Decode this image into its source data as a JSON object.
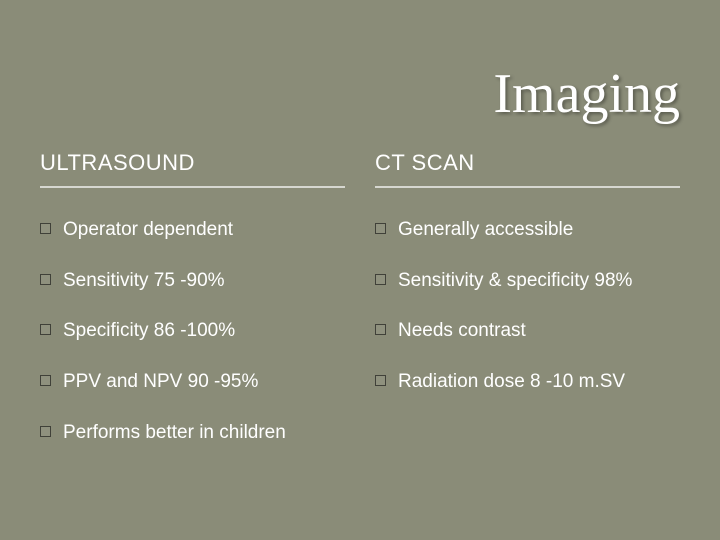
{
  "title": "Imaging",
  "title_fontsize": 56,
  "title_font_family": "Georgia, 'Times New Roman', serif",
  "title_color": "#ffffff",
  "background_color": "#8a8c78",
  "text_color": "#ffffff",
  "body_fontsize": 19,
  "header_fontsize": 22,
  "divider_color": "rgba(255,255,255,0.65)",
  "bullet_box_border": "rgba(0,0,0,0.55)",
  "left": {
    "header": "ULTRASOUND",
    "items": [
      "Operator dependent",
      "Sensitivity 75 -90%",
      "Specificity 86 -100%",
      "PPV and NPV 90 -95%",
      "Performs better in children"
    ]
  },
  "right": {
    "header": "CT SCAN",
    "items": [
      "Generally accessible",
      "Sensitivity & specificity 98%",
      "Needs contrast",
      "Radiation dose 8 -10 m.SV"
    ]
  }
}
